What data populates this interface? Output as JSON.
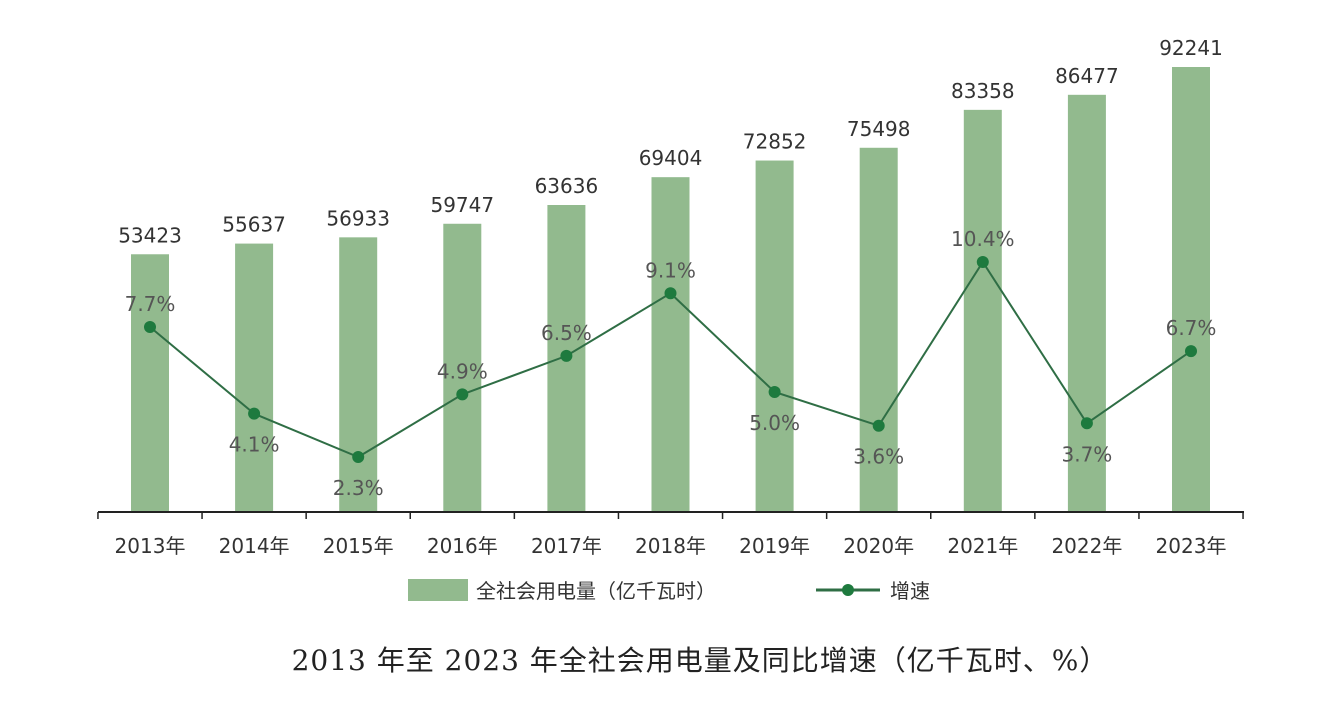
{
  "chart_data": {
    "type": "bar",
    "title": "2013 年至 2023 年全社会用电量及同比增速（亿千瓦时、%）",
    "categories": [
      "2013年",
      "2014年",
      "2015年",
      "2016年",
      "2017年",
      "2018年",
      "2019年",
      "2020年",
      "2021年",
      "2022年",
      "2023年"
    ],
    "series": [
      {
        "name": "全社会用电量（亿千瓦时）",
        "kind": "bar",
        "values": [
          53423,
          55637,
          56933,
          59747,
          63636,
          69404,
          72852,
          75498,
          83358,
          86477,
          92241
        ],
        "labels": [
          "53423",
          "55637",
          "56933",
          "59747",
          "63636",
          "69404",
          "72852",
          "75498",
          "83358",
          "86477",
          "92241"
        ]
      },
      {
        "name": "增速",
        "kind": "line",
        "values": [
          7.7,
          4.1,
          2.3,
          4.9,
          6.5,
          9.1,
          5.0,
          3.6,
          10.4,
          3.7,
          6.7
        ],
        "labels": [
          "7.7%",
          "4.1%",
          "2.3%",
          "4.9%",
          "6.5%",
          "9.1%",
          "5.0%",
          "3.6%",
          "10.4%",
          "3.7%",
          "6.7%"
        ]
      }
    ],
    "ylim": [
      0,
      95000
    ],
    "y2lim": [
      0,
      20
    ],
    "grid": false,
    "legend": "bottom-center",
    "colors": {
      "bar": "#92ba8e",
      "line": "#2f6e45",
      "marker": "#1e7a3e",
      "axis": "#222222"
    }
  }
}
